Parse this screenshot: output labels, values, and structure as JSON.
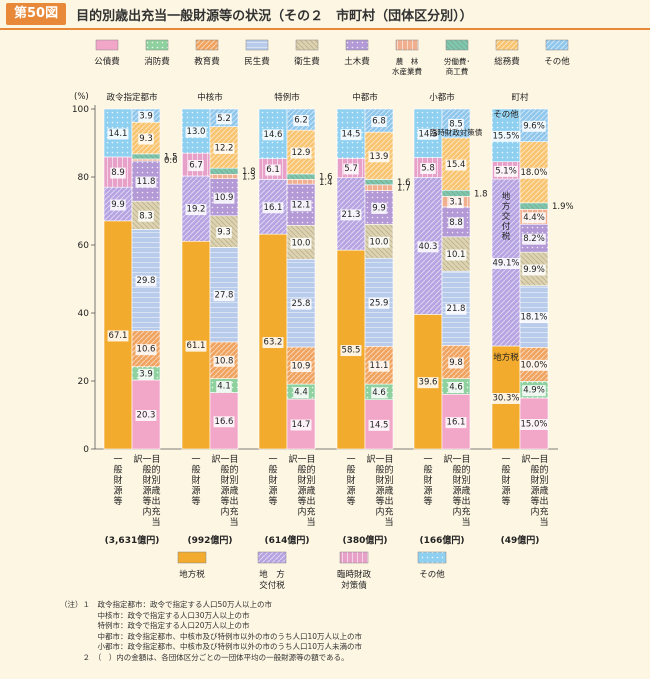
{
  "header": {
    "badge": "第50図",
    "title": "目的別歳出充当一般財源等の状況（その２　市町村（団体区分別））"
  },
  "colors": {
    "公債費": "#f2a6c8",
    "消防費": "#8fd19e",
    "教育費": "#f0a35e",
    "民生費": "#b8cbea",
    "衛生費": "#ddd3b0",
    "土木費": "#b39ad6",
    "農林水産業費": "#f0b090",
    "労働費・商工費": "#7fc8b0",
    "総務費": "#f9c46f",
    "その他": "#8fc6ec",
    "地方税": "#f3ab2e",
    "地方交付税": "#b6a3e2",
    "臨時財政対策債": "#e7a0c8",
    "その他財源": "#8fd0f0"
  },
  "chart_data": {
    "type": "bar",
    "stacked": true,
    "ylabel": "(%)",
    "ylim": [
      0,
      100
    ],
    "yticks": [
      0,
      20,
      40,
      60,
      80,
      100
    ],
    "bar_labels": {
      "general": "一般財源等",
      "purpose": "目的別歳出充当一般財源等内訳"
    },
    "top_legend": [
      {
        "label": "公債費",
        "key": "公債費"
      },
      {
        "label": "消防費",
        "key": "消防費"
      },
      {
        "label": "教育費",
        "key": "教育費"
      },
      {
        "label": "民生費",
        "key": "民生費"
      },
      {
        "label": "衛生費",
        "key": "衛生費"
      },
      {
        "label": "土木費",
        "key": "土木費"
      },
      {
        "label": "農　林\n水産業費",
        "key": "農林水産業費"
      },
      {
        "label": "労働費･\n商工費",
        "key": "労働費・商工費"
      },
      {
        "label": "総務費",
        "key": "総務費"
      },
      {
        "label": "その他",
        "key": "その他"
      }
    ],
    "bottom_legend": [
      {
        "label": "地方税",
        "key": "地方税"
      },
      {
        "label": "地　方\n交付税",
        "key": "地方交付税"
      },
      {
        "label": "臨時財政\n対策債",
        "key": "臨時財政対策債"
      },
      {
        "label": "その他",
        "key": "その他財源"
      }
    ],
    "groups": [
      {
        "name": "政令指定都市",
        "amount": "(3,631億円)",
        "general": [
          {
            "key": "地方税",
            "value": 67.1,
            "label": "67.1"
          },
          {
            "key": "地方交付税",
            "value": 9.9,
            "label": "9.9"
          },
          {
            "key": "臨時財政対策債",
            "value": 8.9,
            "label": "8.9"
          },
          {
            "key": "その他財源",
            "value": 14.1,
            "label": "14.1"
          }
        ],
        "purpose": [
          {
            "key": "公債費",
            "value": 20.3,
            "label": "20.3"
          },
          {
            "key": "消防費",
            "value": 3.9,
            "label": "3.9"
          },
          {
            "key": "教育費",
            "value": 10.6,
            "label": "10.6"
          },
          {
            "key": "民生費",
            "value": 29.8,
            "label": "29.8"
          },
          {
            "key": "衛生費",
            "value": 8.3,
            "label": "8.3"
          },
          {
            "key": "土木費",
            "value": 11.8,
            "label": "11.8"
          },
          {
            "key": "農林水産業費",
            "value": 0.6,
            "label": "0.6"
          },
          {
            "key": "労働費・商工費",
            "value": 1.5,
            "label": "1.5"
          },
          {
            "key": "総務費",
            "value": 9.3,
            "label": "9.3"
          },
          {
            "key": "その他",
            "value": 3.9,
            "label": "3.9"
          }
        ]
      },
      {
        "name": "中核市",
        "amount": "(992億円)",
        "general": [
          {
            "key": "地方税",
            "value": 61.1,
            "label": "61.1"
          },
          {
            "key": "地方交付税",
            "value": 19.2,
            "label": "19.2"
          },
          {
            "key": "臨時財政対策債",
            "value": 6.7,
            "label": "6.7"
          },
          {
            "key": "その他財源",
            "value": 13.0,
            "label": "13.0"
          }
        ],
        "purpose": [
          {
            "key": "公債費",
            "value": 16.6,
            "label": "16.6"
          },
          {
            "key": "消防費",
            "value": 4.1,
            "label": "4.1"
          },
          {
            "key": "教育費",
            "value": 10.8,
            "label": "10.8"
          },
          {
            "key": "民生費",
            "value": 27.8,
            "label": "27.8"
          },
          {
            "key": "衛生費",
            "value": 9.3,
            "label": "9.3"
          },
          {
            "key": "土木費",
            "value": 10.9,
            "label": "10.9"
          },
          {
            "key": "農林水産業費",
            "value": 1.3,
            "label": "1.3"
          },
          {
            "key": "労働費・商工費",
            "value": 1.8,
            "label": "1.8"
          },
          {
            "key": "総務費",
            "value": 12.2,
            "label": "12.2"
          },
          {
            "key": "その他",
            "value": 5.2,
            "label": "5.2"
          }
        ]
      },
      {
        "name": "特例市",
        "amount": "(614億円)",
        "general": [
          {
            "key": "地方税",
            "value": 63.2,
            "label": "63.2"
          },
          {
            "key": "地方交付税",
            "value": 16.1,
            "label": "16.1"
          },
          {
            "key": "臨時財政対策債",
            "value": 6.1,
            "label": "6.1"
          },
          {
            "key": "その他財源",
            "value": 14.6,
            "label": "14.6"
          }
        ],
        "purpose": [
          {
            "key": "公債費",
            "value": 14.7,
            "label": "14.7"
          },
          {
            "key": "消防費",
            "value": 4.4,
            "label": "4.4"
          },
          {
            "key": "教育費",
            "value": 10.9,
            "label": "10.9"
          },
          {
            "key": "民生費",
            "value": 25.8,
            "label": "25.8"
          },
          {
            "key": "衛生費",
            "value": 10.0,
            "label": "10.0"
          },
          {
            "key": "土木費",
            "value": 12.1,
            "label": "12.1"
          },
          {
            "key": "農林水産業費",
            "value": 1.4,
            "label": "1.4"
          },
          {
            "key": "労働費・商工費",
            "value": 1.6,
            "label": "1.6"
          },
          {
            "key": "総務費",
            "value": 12.9,
            "label": "12.9"
          },
          {
            "key": "その他",
            "value": 6.2,
            "label": "6.2"
          }
        ]
      },
      {
        "name": "中都市",
        "amount": "(380億円)",
        "general": [
          {
            "key": "地方税",
            "value": 58.5,
            "label": "58.5"
          },
          {
            "key": "地方交付税",
            "value": 21.3,
            "label": "21.3"
          },
          {
            "key": "臨時財政対策債",
            "value": 5.7,
            "label": "5.7"
          },
          {
            "key": "その他財源",
            "value": 14.5,
            "label": "14.5"
          }
        ],
        "purpose": [
          {
            "key": "公債費",
            "value": 14.5,
            "label": "14.5"
          },
          {
            "key": "消防費",
            "value": 4.6,
            "label": "4.6"
          },
          {
            "key": "教育費",
            "value": 11.1,
            "label": "11.1"
          },
          {
            "key": "民生費",
            "value": 25.9,
            "label": "25.9"
          },
          {
            "key": "衛生費",
            "value": 10.0,
            "label": "10.0"
          },
          {
            "key": "土木費",
            "value": 9.9,
            "label": "9.9"
          },
          {
            "key": "農林水産業費",
            "value": 1.7,
            "label": "1.7"
          },
          {
            "key": "労働費・商工費",
            "value": 1.6,
            "label": "1.6"
          },
          {
            "key": "総務費",
            "value": 13.9,
            "label": "13.9"
          },
          {
            "key": "その他",
            "value": 6.8,
            "label": "6.8"
          }
        ]
      },
      {
        "name": "小都市",
        "amount": "(166億円)",
        "general": [
          {
            "key": "地方税",
            "value": 39.6,
            "label": "39.6"
          },
          {
            "key": "地方交付税",
            "value": 40.3,
            "label": "40.3"
          },
          {
            "key": "臨時財政対策債",
            "value": 5.8,
            "label": "5.8"
          },
          {
            "key": "その他財源",
            "value": 14.3,
            "label": "14.3"
          }
        ],
        "purpose": [
          {
            "key": "公債費",
            "value": 16.1,
            "label": "16.1"
          },
          {
            "key": "消防費",
            "value": 4.6,
            "label": "4.6"
          },
          {
            "key": "教育費",
            "value": 9.8,
            "label": "9.8"
          },
          {
            "key": "民生費",
            "value": 21.8,
            "label": "21.8"
          },
          {
            "key": "衛生費",
            "value": 10.1,
            "label": "10.1"
          },
          {
            "key": "土木費",
            "value": 8.8,
            "label": "8.8"
          },
          {
            "key": "農林水産業費",
            "value": 3.1,
            "label": "3.1"
          },
          {
            "key": "労働費・商工費",
            "value": 1.8,
            "label": "1.8"
          },
          {
            "key": "総務費",
            "value": 15.4,
            "label": "15.4"
          },
          {
            "key": "その他",
            "value": 8.5,
            "label": "8.5"
          }
        ]
      },
      {
        "name": "町村",
        "amount": "(49億円)",
        "general": [
          {
            "key": "地方税",
            "value": 30.3,
            "label": "30.3%"
          },
          {
            "key": "地方交付税",
            "value": 49.1,
            "label": "49.1%"
          },
          {
            "key": "臨時財政対策債",
            "value": 5.1,
            "label": "5.1%"
          },
          {
            "key": "その他財源",
            "value": 15.5,
            "label": "15.5%"
          }
        ],
        "purpose": [
          {
            "key": "公債費",
            "value": 15.0,
            "label": "15.0%"
          },
          {
            "key": "消防費",
            "value": 4.9,
            "label": "4.9%"
          },
          {
            "key": "教育費",
            "value": 10.0,
            "label": "10.0%"
          },
          {
            "key": "民生費",
            "value": 18.1,
            "label": "18.1%"
          },
          {
            "key": "衛生費",
            "value": 9.9,
            "label": "9.9%"
          },
          {
            "key": "土木費",
            "value": 8.2,
            "label": "8.2%"
          },
          {
            "key": "農林水産業費",
            "value": 4.4,
            "label": "4.4%"
          },
          {
            "key": "労働費・商工費",
            "value": 1.9,
            "label": "1.9%"
          },
          {
            "key": "総務費",
            "value": 18.0,
            "label": "18.0%"
          },
          {
            "key": "その他",
            "value": 9.6,
            "label": "9.6%"
          }
        ]
      }
    ],
    "inline_labels": {
      "町村_地方税": "地方税",
      "町村_地方交付税": "地方交付税",
      "町村_その他財源": "その他",
      "小都市_臨時財政対策債": "臨時\n財政\n対策債"
    }
  },
  "notes": [
    "（注）１　政令指定都市：政令で指定する人口50万人以上の市",
    "　　　　　中核市：政令で指定する人口30万人以上の市",
    "　　　　　特例市：政令で指定する人口20万人以上の市",
    "　　　　　中都市：政令指定都市、中核市及び特例市以外の市のうち人口10万人以上の市",
    "　　　　　小都市：政令指定都市、中核市及び特例市以外の市のうち人口10万人未満の市",
    "　　　２　（　）内の金額は、各団体区分ごとの一団体平均の一般財源等の額である。"
  ]
}
